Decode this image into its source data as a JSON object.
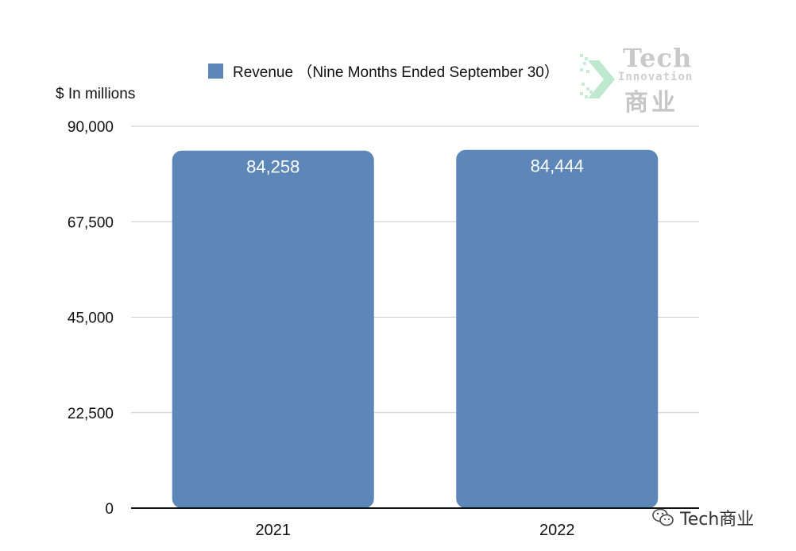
{
  "chart_data": {
    "type": "bar",
    "categories": [
      "2021",
      "2022"
    ],
    "series": [
      {
        "name": "Revenue （Nine Months Ended September 30）",
        "values": [
          84258,
          84444
        ]
      }
    ],
    "data_labels": [
      "84,258",
      "84,444"
    ],
    "ylabel": "$ In millions",
    "xlabel": "",
    "ylim": [
      0,
      90000
    ],
    "yticks": [
      0,
      22500,
      45000,
      67500,
      90000
    ],
    "ytick_labels": [
      "0",
      "22,500",
      "45,000",
      "67,500",
      "90,000"
    ],
    "grid": true,
    "legend_position": "top",
    "bar_color": "#5d87b8"
  },
  "logo": {
    "line1": "Tech",
    "line2": "Innovation",
    "line3": "商业"
  },
  "watermark": {
    "text": "Tech商业",
    "icon": "wechat-icon"
  }
}
